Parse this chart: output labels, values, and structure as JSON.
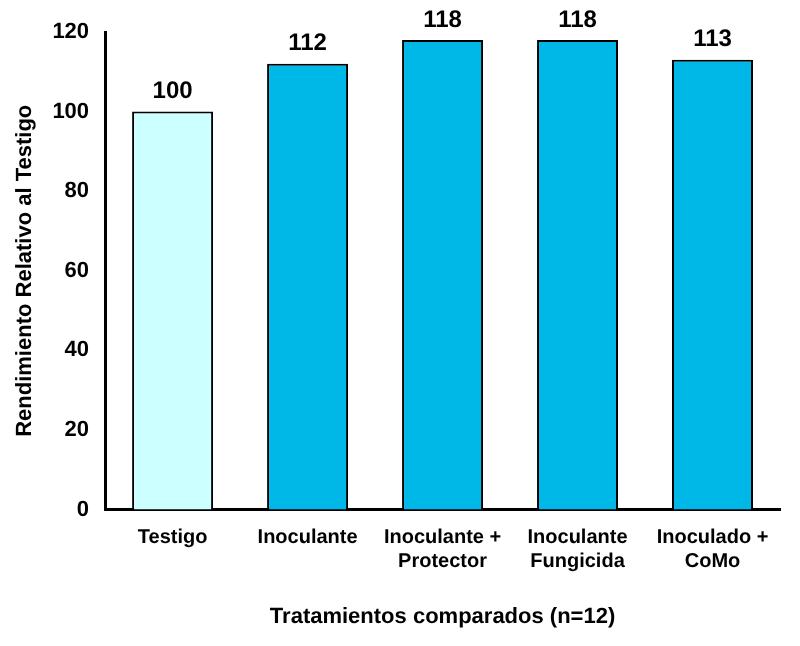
{
  "chart_data": {
    "type": "bar",
    "xlabel": "Tratamientos comparados (n=12)",
    "ylabel": "Rendimiento Relativo al Testigo",
    "categories": [
      "Testigo",
      "Inoculante",
      "Inoculante + Protector",
      "Inoculante Fungicida",
      "Inoculado + CoMo"
    ],
    "values": [
      100,
      112,
      118,
      118,
      113
    ],
    "colors": [
      "#ccffff",
      "#00b8e8",
      "#00b8e8",
      "#00b8e8",
      "#00b8e8"
    ],
    "ylim": [
      0,
      120
    ],
    "yticks": [
      0,
      20,
      40,
      60,
      80,
      100,
      120
    ],
    "grid": false,
    "data_labels": true
  }
}
